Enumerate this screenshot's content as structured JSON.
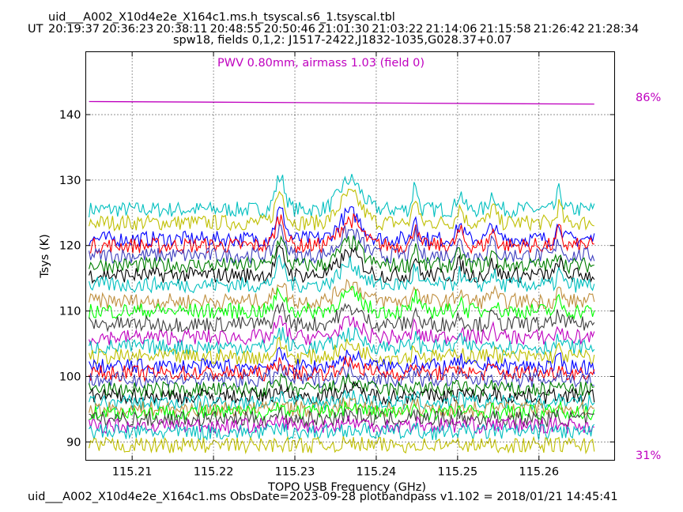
{
  "header": {
    "title": "uid___A002_X10d4e2e_X164c1.ms.h_tsyscal.s6_1.tsyscal.tbl",
    "ut_label": "UT",
    "ut_times": [
      "20:19:37",
      "20:36:23",
      "20:38:11",
      "20:48:55",
      "20:50:46",
      "21:01:30",
      "21:03:22",
      "21:14:06",
      "21:15:58",
      "21:26:42",
      "21:28:34"
    ],
    "subtitle": "spw18,  fields 0,1,2: J1517-2422,J1832-1035,G028.37+0.07"
  },
  "footer": "uid___A002_X10d4e2e_X164c1.ms  ObsDate=2023-09-28   plotbandpass v1.102 = 2018/01/21 14:45:41",
  "annotations": {
    "pwv": "PWV 0.80mm, airmass 1.03 (field 0)",
    "atm_top": "86%",
    "atm_bottom": "31%"
  },
  "colors": {
    "atm": "#bf00bf",
    "series_palette": [
      "#00bfbf",
      "#bfbf00",
      "#0000ff",
      "#ff0000",
      "#4040c0",
      "#007f00",
      "#000000",
      "#00bfbf",
      "#bf8f3f",
      "#00ff00",
      "#404040",
      "#bf00bf"
    ]
  },
  "chart_data": {
    "type": "line",
    "xlabel": "TOPO USB Frequency (GHz)",
    "ylabel": "Tsys (K)",
    "xlim": [
      115.2043,
      115.2693
    ],
    "ylim": [
      87.2,
      149.6
    ],
    "xticks": [
      115.21,
      115.22,
      115.23,
      115.24,
      115.25,
      115.26
    ],
    "xtick_labels": [
      "115.21",
      "115.22",
      "115.23",
      "115.24",
      "115.25",
      "115.26"
    ],
    "yticks": [
      90,
      100,
      110,
      120,
      130,
      140
    ],
    "ytick_labels": [
      "90",
      "100",
      "110",
      "120",
      "130",
      "140"
    ],
    "grid": true,
    "series_x_range": [
      115.2047,
      115.2668
    ],
    "series_baselines": [
      125.5,
      123.5,
      121.0,
      120.0,
      118.5,
      117.0,
      115.5,
      114.0,
      111.5,
      110.0,
      108.0,
      106.0,
      104.5,
      103.0,
      101.5,
      100.5,
      99.5,
      98.0,
      97.0,
      96.0,
      95.0,
      94.5,
      93.5,
      92.5,
      91.5,
      89.5
    ],
    "line_features": [
      {
        "center": 115.2282,
        "width": 0.0006,
        "relative_height": 0.6
      },
      {
        "center": 115.2368,
        "width": 0.0013,
        "relative_height": 0.55
      },
      {
        "center": 115.2448,
        "width": 0.0003,
        "relative_height": 0.5
      },
      {
        "center": 115.2503,
        "width": 0.0004,
        "relative_height": 0.3
      },
      {
        "center": 115.2543,
        "width": 0.0004,
        "relative_height": 0.3
      },
      {
        "center": 115.2625,
        "width": 0.0003,
        "relative_height": 0.35
      }
    ],
    "atm_transmission": {
      "x": [
        115.2047,
        115.2668
      ],
      "y": [
        142.0,
        141.6
      ]
    }
  }
}
